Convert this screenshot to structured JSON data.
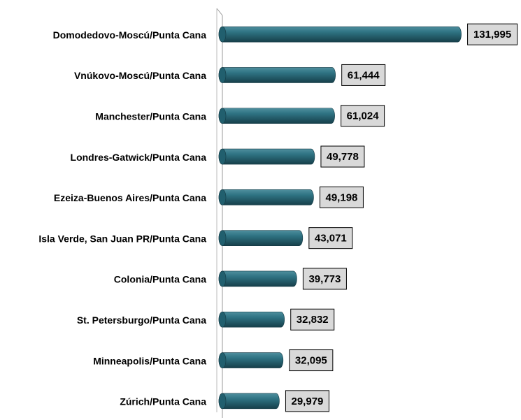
{
  "chart_data": {
    "type": "hbar",
    "categories": [
      "Domodedovo-Moscú/Punta Cana",
      "Vnúkovo-Moscú/Punta Cana",
      "Manchester/Punta Cana",
      "Londres-Gatwick/Punta Cana",
      "Ezeiza-Buenos Aires/Punta Cana",
      "Isla Verde, San Juan PR/Punta Cana",
      "Colonia/Punta Cana",
      "St. Petersburgo/Punta Cana",
      "Minneapolis/Punta Cana",
      "Zúrich/Punta Cana"
    ],
    "values": [
      131995,
      61444,
      61024,
      49778,
      49198,
      43071,
      39773,
      32832,
      32095,
      29979
    ],
    "value_labels": [
      "131,995",
      "61,444",
      "61,024",
      "49,778",
      "49,198",
      "43,071",
      "39,773",
      "32,832",
      "32,095",
      "29,979"
    ],
    "color": "#215f6e",
    "xlim": [
      0,
      140000
    ]
  }
}
